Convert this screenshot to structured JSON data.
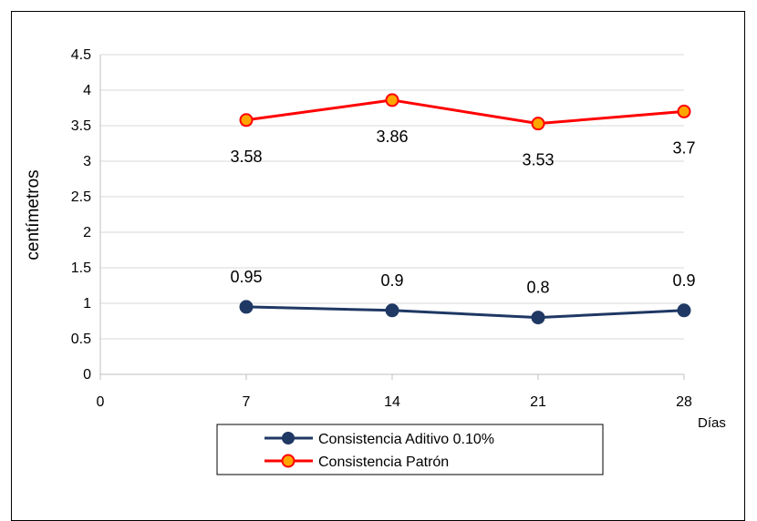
{
  "chart_data": {
    "type": "line",
    "title": "",
    "xlabel": "Días",
    "ylabel": "centímetros",
    "x": [
      7,
      14,
      21,
      28
    ],
    "xlim": [
      0,
      28
    ],
    "x_ticks": [
      "0",
      "7",
      "14",
      "21",
      "28"
    ],
    "ylim": [
      0,
      4.5
    ],
    "y_ticks": [
      "0",
      "0.5",
      "1",
      "1.5",
      "2",
      "2.5",
      "3",
      "3.5",
      "4",
      "4.5"
    ],
    "grid": "horizontal",
    "legend_position": "bottom",
    "series": [
      {
        "name": "Consistencia Aditivo 0.10%",
        "values": [
          0.95,
          0.9,
          0.8,
          0.9
        ],
        "labels": [
          "0.95",
          "0.9",
          "0.8",
          "0.9"
        ],
        "color": "#1f3864",
        "marker_fill": "#1f3864",
        "label_position": "above"
      },
      {
        "name": "Consistencia Patrón",
        "values": [
          3.58,
          3.86,
          3.53,
          3.7
        ],
        "labels": [
          "3.58",
          "3.86",
          "3.53",
          "3.7"
        ],
        "color": "#ff0000",
        "marker_fill": "#ffa500",
        "label_position": "below"
      }
    ]
  }
}
